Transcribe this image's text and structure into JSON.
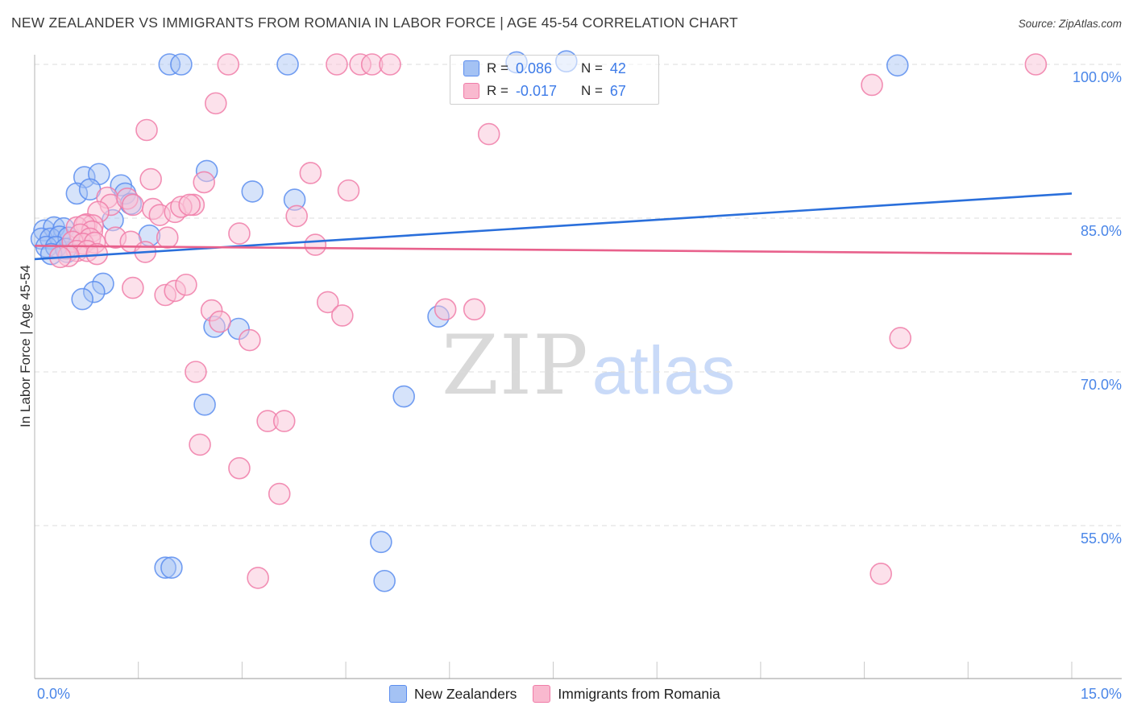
{
  "header": {
    "title": "NEW ZEALANDER VS IMMIGRANTS FROM ROMANIA IN LABOR FORCE | AGE 45-54 CORRELATION CHART",
    "source": "Source: ZipAtlas.com"
  },
  "watermark": {
    "part1": "ZIP",
    "part2": "atlas"
  },
  "axes": {
    "y_label": "In Labor Force | Age 45-54",
    "y_ticks": [
      "100.0%",
      "85.0%",
      "70.0%",
      "55.0%"
    ],
    "x_tick_left": "0.0%",
    "x_tick_right": "15.0%"
  },
  "stats_legend": {
    "rows": [
      {
        "r_label": "R =",
        "r_value": "0.086",
        "n_label": "N =",
        "n_value": "42"
      },
      {
        "r_label": "R =",
        "r_value": "-0.017",
        "n_label": "N =",
        "n_value": "67"
      }
    ]
  },
  "bottom_legend": {
    "items": [
      {
        "label": "New Zealanders"
      },
      {
        "label": "Immigrants from Romania"
      }
    ]
  },
  "colors": {
    "blue_fill": "#a4c2f4",
    "blue_stroke": "#5b8def",
    "pink_fill": "#f9c4d8",
    "pink_stroke": "#f07ca8",
    "blue_trend": "#2a6fdb",
    "pink_trend": "#e8618c",
    "gridline": "#dcdcdc",
    "spine": "#b3b3b3",
    "tick": "#c9c9c9",
    "axis_text": "#4a86e8"
  },
  "chart_data": {
    "type": "scatter",
    "title": "New Zealander vs Immigrants from Romania in Labor Force | Age 45-54",
    "xlabel": "",
    "ylabel": "In Labor Force | Age 45-54",
    "xlim": [
      0,
      15
    ],
    "ylim": [
      40,
      101
    ],
    "x_unit": "%",
    "y_unit": "%",
    "y_gridlines": [
      100,
      85,
      70,
      55
    ],
    "x_tick_step": 1.5,
    "grid": "dashed-horizontal",
    "legend_position": "bottom",
    "series": [
      {
        "name": "New Zealanders",
        "r": 0.086,
        "n": 42,
        "points": [
          [
            1.95,
            100
          ],
          [
            2.12,
            100
          ],
          [
            3.66,
            100
          ],
          [
            6.97,
            100.2
          ],
          [
            7.69,
            100.3
          ],
          [
            12.48,
            99.9
          ],
          [
            0.72,
            89.0
          ],
          [
            0.93,
            89.3
          ],
          [
            0.61,
            87.4
          ],
          [
            0.8,
            87.8
          ],
          [
            2.49,
            89.6
          ],
          [
            3.15,
            87.6
          ],
          [
            3.76,
            86.8
          ],
          [
            1.25,
            88.2
          ],
          [
            1.31,
            87.4
          ],
          [
            1.39,
            86.4
          ],
          [
            1.13,
            84.8
          ],
          [
            1.66,
            83.3
          ],
          [
            0.47,
            81.7
          ],
          [
            0.99,
            78.6
          ],
          [
            0.86,
            77.8
          ],
          [
            0.69,
            77.1
          ],
          [
            2.6,
            74.4
          ],
          [
            2.95,
            74.2
          ],
          [
            5.84,
            75.4
          ],
          [
            5.34,
            67.6
          ],
          [
            2.46,
            66.8
          ],
          [
            5.01,
            53.4
          ],
          [
            1.89,
            50.9
          ],
          [
            1.98,
            50.9
          ],
          [
            5.06,
            49.6
          ],
          [
            0.14,
            83.8
          ],
          [
            0.28,
            84.1
          ],
          [
            0.42,
            84.0
          ],
          [
            0.1,
            83.0
          ],
          [
            0.23,
            83.0
          ],
          [
            0.36,
            83.2
          ],
          [
            0.49,
            83.1
          ],
          [
            0.17,
            82.2
          ],
          [
            0.31,
            82.2
          ],
          [
            0.45,
            82.0
          ],
          [
            0.24,
            81.5
          ]
        ]
      },
      {
        "name": "Immigrants from Romania",
        "r": -0.017,
        "n": 67,
        "points": [
          [
            2.8,
            100
          ],
          [
            4.37,
            100
          ],
          [
            4.71,
            100
          ],
          [
            4.88,
            100
          ],
          [
            5.14,
            100
          ],
          [
            14.48,
            100
          ],
          [
            12.11,
            98.0
          ],
          [
            2.62,
            96.2
          ],
          [
            1.62,
            93.6
          ],
          [
            6.57,
            93.2
          ],
          [
            1.68,
            88.8
          ],
          [
            2.45,
            88.5
          ],
          [
            3.99,
            89.4
          ],
          [
            4.54,
            87.7
          ],
          [
            3.79,
            85.2
          ],
          [
            2.3,
            86.3
          ],
          [
            1.05,
            87.0
          ],
          [
            1.1,
            86.3
          ],
          [
            1.34,
            86.9
          ],
          [
            1.42,
            86.3
          ],
          [
            1.71,
            85.9
          ],
          [
            1.81,
            85.3
          ],
          [
            2.03,
            85.6
          ],
          [
            2.12,
            86.1
          ],
          [
            2.24,
            86.3
          ],
          [
            0.92,
            85.6
          ],
          [
            0.75,
            84.4
          ],
          [
            0.84,
            84.3
          ],
          [
            2.96,
            83.5
          ],
          [
            1.92,
            83.1
          ],
          [
            1.17,
            83.1
          ],
          [
            1.39,
            82.7
          ],
          [
            1.6,
            81.7
          ],
          [
            4.06,
            82.4
          ],
          [
            1.42,
            78.2
          ],
          [
            1.89,
            77.5
          ],
          [
            2.03,
            77.9
          ],
          [
            2.19,
            78.5
          ],
          [
            2.56,
            76.0
          ],
          [
            2.68,
            74.9
          ],
          [
            3.11,
            73.1
          ],
          [
            4.24,
            76.8
          ],
          [
            4.45,
            75.5
          ],
          [
            5.94,
            76.1
          ],
          [
            6.36,
            76.1
          ],
          [
            2.33,
            70.0
          ],
          [
            3.37,
            65.2
          ],
          [
            3.61,
            65.2
          ],
          [
            2.39,
            62.9
          ],
          [
            2.96,
            60.6
          ],
          [
            3.54,
            58.1
          ],
          [
            3.23,
            49.9
          ],
          [
            12.52,
            73.3
          ],
          [
            12.24,
            50.3
          ],
          [
            0.61,
            84.1
          ],
          [
            0.72,
            84.3
          ],
          [
            0.83,
            83.7
          ],
          [
            0.66,
            83.4
          ],
          [
            0.8,
            83.0
          ],
          [
            0.55,
            82.7
          ],
          [
            0.7,
            82.5
          ],
          [
            0.87,
            82.6
          ],
          [
            0.61,
            81.8
          ],
          [
            0.76,
            81.8
          ],
          [
            0.49,
            81.3
          ],
          [
            0.9,
            81.5
          ],
          [
            0.37,
            81.2
          ]
        ]
      }
    ],
    "trend_lines": [
      {
        "series": "New Zealanders",
        "x": [
          0,
          15
        ],
        "y": [
          81.0,
          87.4
        ]
      },
      {
        "series": "Immigrants from Romania",
        "x": [
          0,
          15
        ],
        "y": [
          82.3,
          81.5
        ]
      }
    ]
  }
}
